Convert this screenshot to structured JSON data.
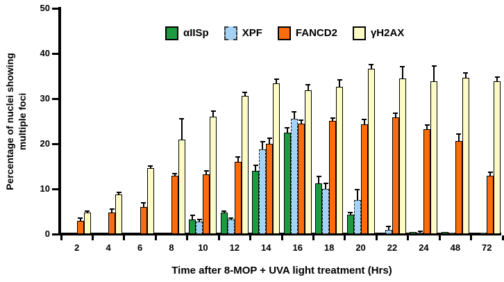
{
  "y_axis_title_line1": "Percentage of nuclei showing",
  "y_axis_title_line2": "multiple foci",
  "x_axis_title": "Time after 8-MOP + UVA light treatment (Hrs)",
  "colors": {
    "aiisp_green": "#1E9B40",
    "xpf_blue": "#A4D2F4",
    "fancd2_orange": "#FA6C0D",
    "gh2ax_yellow": "#FDFBC4",
    "axis_black": "#000000"
  },
  "chart_data": {
    "type": "bar",
    "title": "",
    "xlabel": "Time after 8-MOP + UVA light treatment (Hrs)",
    "ylabel": "Percentage of nuclei showing multiple foci",
    "categories": [
      "2",
      "4",
      "6",
      "8",
      "10",
      "12",
      "14",
      "16",
      "18",
      "20",
      "22",
      "24",
      "48",
      "72"
    ],
    "ylim": [
      0,
      50
    ],
    "yticks": [
      0,
      10,
      20,
      30,
      40,
      50
    ],
    "grid": false,
    "legend_position": "top",
    "error_bars": "upper-only",
    "series": [
      {
        "name": "αIISp",
        "color": "#1E9B40",
        "border_style": "solid",
        "values": [
          0,
          0,
          0,
          0,
          3.2,
          4.7,
          14.0,
          22.5,
          11.2,
          4.3,
          0.3,
          0.4,
          0.5,
          0.3
        ],
        "errors": [
          0,
          0,
          0,
          0,
          1.0,
          0.4,
          1.2,
          1.0,
          1.6,
          0.5,
          0,
          0,
          0,
          0
        ]
      },
      {
        "name": "XPF",
        "color": "#A4D2F4",
        "border_style": "dashed",
        "values": [
          0,
          0,
          0,
          0,
          2.7,
          3.2,
          18.8,
          25.6,
          10.0,
          7.5,
          1.0,
          0.3,
          0.2,
          0.2
        ],
        "errors": [
          0,
          0,
          0,
          0,
          0.5,
          0.4,
          1.6,
          1.5,
          1.3,
          2.3,
          0.7,
          0.3,
          0,
          0
        ]
      },
      {
        "name": "FANCD2",
        "color": "#FA6C0D",
        "border_style": "solid",
        "values": [
          3.0,
          4.7,
          6.0,
          12.9,
          13.3,
          16.0,
          20.0,
          24.5,
          25.1,
          24.3,
          25.8,
          23.3,
          20.6,
          13.0
        ],
        "errors": [
          0.5,
          0.9,
          0.9,
          0.5,
          0.7,
          1.1,
          1.3,
          0.8,
          0.6,
          1.1,
          0.9,
          0.8,
          1.6,
          0.7
        ]
      },
      {
        "name": "γH2AX",
        "color": "#FDFBC4",
        "border_style": "solid",
        "values": [
          4.7,
          8.7,
          14.6,
          21.0,
          26.0,
          30.6,
          33.4,
          31.9,
          32.6,
          36.6,
          34.5,
          33.9,
          34.6,
          33.8
        ],
        "errors": [
          0.4,
          0.5,
          0.5,
          4.5,
          1.3,
          0.8,
          0.9,
          1.2,
          1.6,
          1.0,
          2.6,
          3.3,
          1.1,
          1.0
        ]
      }
    ]
  }
}
